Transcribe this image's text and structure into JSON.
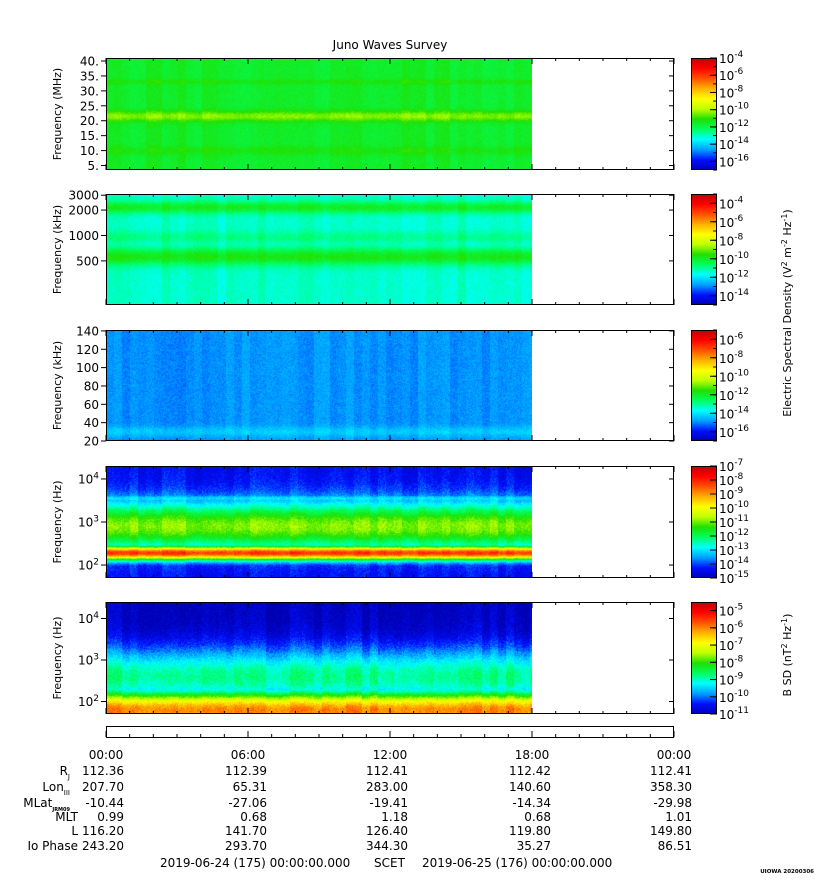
{
  "title": "Juno Waves Survey",
  "colors": {
    "colormap": [
      "#0000b0",
      "#0010ff",
      "#00a0ff",
      "#00ffff",
      "#00ff60",
      "#20e000",
      "#c0ff00",
      "#ffff00",
      "#ffb000",
      "#ff5000",
      "#ff0000",
      "#c00000"
    ],
    "background": "#ffffff",
    "frame": "#000000"
  },
  "chart_data": [
    {
      "type": "heatmap",
      "panel": "electric-high",
      "ylabel": "Frequency (MHz)",
      "yscale": "linear",
      "ylim": [
        3.5,
        41
      ],
      "yticks": [
        {
          "v": 5,
          "l": "5."
        },
        {
          "v": 10,
          "l": "10."
        },
        {
          "v": 15,
          "l": "15."
        },
        {
          "v": 20,
          "l": "20."
        },
        {
          "v": 25,
          "l": "25."
        },
        {
          "v": 30,
          "l": "30."
        },
        {
          "v": 35,
          "l": "35."
        },
        {
          "v": 40,
          "l": "40."
        }
      ],
      "data_end_hour": 18,
      "base_exp": -11.6,
      "features": [
        {
          "y": 21.5,
          "width": 1.2,
          "exp": -10.3
        },
        {
          "y": 33,
          "width": 0.6,
          "exp": -11.2
        },
        {
          "y": 10,
          "width": 1.0,
          "exp": -11.2
        }
      ],
      "colorbar": {
        "min_exp": -17,
        "max_exp": -4,
        "ticks": [
          -4,
          -6,
          -8,
          -10,
          -12,
          -14,
          -16
        ]
      }
    },
    {
      "type": "heatmap",
      "panel": "electric-mid",
      "ylabel": "Frequency (kHz)",
      "yscale": "log",
      "ylim": [
        150,
        3100
      ],
      "yticks": [
        {
          "v": 500,
          "l": "500"
        },
        {
          "v": 1000,
          "l": "1000"
        },
        {
          "v": 2000,
          "l": "2000"
        },
        {
          "v": 3000,
          "l": "3000"
        }
      ],
      "data_end_hour": 18,
      "base_exp": -11.4,
      "features": [
        {
          "y": 2150,
          "width": 0.05,
          "exp": -10.0
        },
        {
          "y": 560,
          "width": 0.07,
          "exp": -9.8
        },
        {
          "y": 950,
          "width": 0.05,
          "exp": -10.9
        }
      ],
      "colorbar": {
        "min_exp": -15,
        "max_exp": -3,
        "ticks": [
          -4,
          -6,
          -8,
          -10,
          -12,
          -14
        ]
      }
    },
    {
      "type": "heatmap",
      "panel": "electric-low",
      "ylabel": "Frequency (kHz)",
      "yscale": "linear",
      "ylim": [
        20,
        141
      ],
      "yticks": [
        {
          "v": 20,
          "l": "20"
        },
        {
          "v": 40,
          "l": "40"
        },
        {
          "v": 60,
          "l": "60"
        },
        {
          "v": 80,
          "l": "80"
        },
        {
          "v": 100,
          "l": "100"
        },
        {
          "v": 120,
          "l": "120"
        },
        {
          "v": 140,
          "l": "140"
        }
      ],
      "data_end_hour": 18,
      "base_exp": -14.9,
      "features": [
        {
          "y": 30,
          "width": 4,
          "exp": -14.3
        }
      ],
      "colorbar": {
        "min_exp": -17,
        "max_exp": -5,
        "ticks": [
          -6,
          -8,
          -10,
          -12,
          -14,
          -16
        ]
      }
    },
    {
      "type": "heatmap",
      "panel": "electric-vlf",
      "ylabel": "Frequency (Hz)",
      "yscale": "log",
      "ylim": [
        50,
        20000
      ],
      "yticks": [
        {
          "v": 100,
          "l": "10",
          "sup": "2"
        },
        {
          "v": 1000,
          "l": "10",
          "sup": "3"
        },
        {
          "v": 10000,
          "l": "10",
          "sup": "4"
        }
      ],
      "data_end_hour": 18,
      "base_exp": -14.4,
      "features": [
        {
          "y": 190,
          "width": 0.12,
          "exp": -8.2
        },
        {
          "y": 800,
          "width": 0.4,
          "exp": -10.9
        },
        {
          "y": 3500,
          "width": 0.06,
          "exp": -13.0
        }
      ],
      "colorbar": {
        "min_exp": -15,
        "max_exp": -7,
        "ticks": [
          -7,
          -8,
          -9,
          -10,
          -11,
          -12,
          -13,
          -14,
          -15
        ]
      }
    },
    {
      "type": "heatmap",
      "panel": "magnetic",
      "ylabel": "Frequency (Hz)",
      "yscale": "log",
      "ylim": [
        50,
        25000
      ],
      "yticks": [
        {
          "v": 100,
          "l": "10",
          "sup": "2"
        },
        {
          "v": 1000,
          "l": "10",
          "sup": "3"
        },
        {
          "v": 10000,
          "l": "10",
          "sup": "4"
        }
      ],
      "data_end_hour": 18,
      "base_exp": -10.9,
      "features": [
        {
          "y": 60,
          "width": 0.35,
          "exp": -6.0
        },
        {
          "y": 400,
          "width": 0.5,
          "exp": -8.8
        }
      ],
      "colorbar": {
        "min_exp": -11,
        "max_exp": -4.5,
        "ticks": [
          -5,
          -6,
          -7,
          -8,
          -9,
          -10,
          -11
        ]
      }
    }
  ],
  "colorbar_labels": {
    "electric": {
      "prefix": "Electric Spectral Density (V",
      "sup1": "2",
      "mid": " m",
      "sup2": "-2",
      "mid2": " Hz",
      "sup3": "-1",
      "suffix": ")"
    },
    "magnetic": {
      "prefix": "B SD (nT",
      "sup1": "2",
      "mid": " Hz",
      "sup2": "-1",
      "suffix": ")"
    }
  },
  "time_axis": {
    "min_hour": 0,
    "max_hour": 24,
    "labels": [
      {
        "hour": 0,
        "text": "00:00"
      },
      {
        "hour": 6,
        "text": "06:00"
      },
      {
        "hour": 12,
        "text": "12:00"
      },
      {
        "hour": 18,
        "text": "18:00"
      },
      {
        "hour": 24,
        "text": "00:00"
      }
    ]
  },
  "ephemeris": [
    {
      "name": "R",
      "sub": "J",
      "values": [
        "112.36",
        "112.39",
        "112.41",
        "112.42",
        "112.41"
      ]
    },
    {
      "name": "Lon",
      "sub": "III",
      "values": [
        "207.70",
        "65.31",
        "283.00",
        "140.60",
        "358.30"
      ]
    },
    {
      "name": "MLat",
      "sub": "JRM09",
      "values": [
        "-10.44",
        "-27.06",
        "-19.41",
        "-14.34",
        "-29.98"
      ]
    },
    {
      "name": "MLT",
      "sub": "",
      "values": [
        "0.99",
        "0.68",
        "1.18",
        "0.68",
        "1.01"
      ]
    },
    {
      "name": "L",
      "sub": "",
      "values": [
        "116.20",
        "141.70",
        "126.40",
        "119.80",
        "149.80"
      ]
    },
    {
      "name": "Io Phase",
      "sub": "",
      "values": [
        "243.20",
        "293.70",
        "344.30",
        "35.27",
        "86.51"
      ]
    }
  ],
  "footer": {
    "start": "2019-06-24 (175) 00:00:00.000",
    "scet": "SCET",
    "end": "2019-06-25 (176) 00:00:00.000",
    "stamp": "UIOWA 20200306"
  }
}
